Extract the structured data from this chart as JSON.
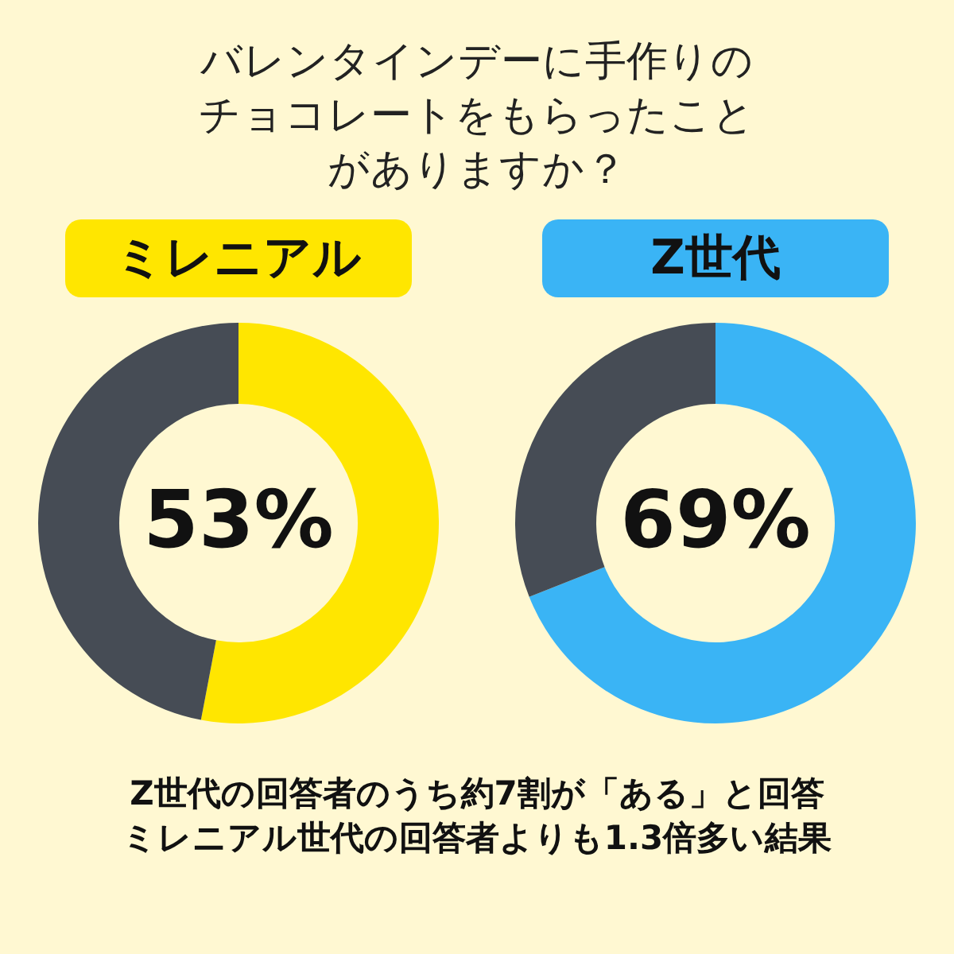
{
  "chart_data": [
    {
      "type": "donut",
      "title": "バレンタインデーに手作りのチョコレートをもらったことがありますか？",
      "subtitle": "ミレニアル",
      "categories": [
        null,
        null
      ],
      "values": [
        53,
        47
      ],
      "colors": [
        "#ffe600",
        "#464c55"
      ],
      "value_labels": [
        "53%",
        null
      ]
    },
    {
      "type": "donut",
      "subtitle": "Z世代",
      "categories": [
        null,
        null
      ],
      "values": [
        69,
        31
      ],
      "colors": [
        "#3ab4f5",
        "#464c55"
      ],
      "value_labels": [
        "69%",
        null
      ],
      "annotations": [
        "Z世代の回答者のうち約7割が「ある」と回答",
        "ミレニアル世代の回答者よりも1.3倍多い結果"
      ]
    }
  ]
}
